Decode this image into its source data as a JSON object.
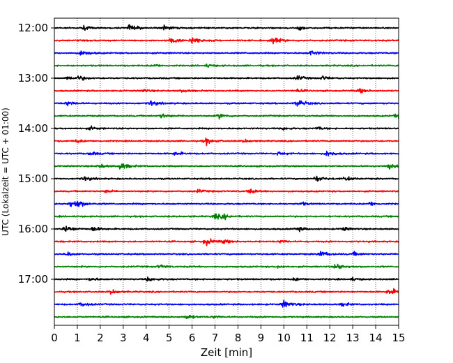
{
  "chart_data": {
    "type": "line",
    "title": "",
    "xlabel": "Zeit  [min]",
    "ylabel": "UTC (Lokalzeit = UTC + 01:00)",
    "xlim": [
      0,
      15
    ],
    "x_ticks": [
      0,
      1,
      2,
      3,
      4,
      5,
      6,
      7,
      8,
      9,
      10,
      11,
      12,
      13,
      14,
      15
    ],
    "y_tick_labels": [
      "12:00",
      "13:00",
      "14:00",
      "15:00",
      "16:00",
      "17:00"
    ],
    "trace_interval_min": 15,
    "grid": "vertical dotted at each minute",
    "legend": "none",
    "trace_colors": [
      "#000000",
      "#ff0000",
      "#0000ff",
      "#008000"
    ],
    "series": [
      {
        "start": "12:00",
        "color": "#000000",
        "events": [
          [
            1.3,
            0.5
          ],
          [
            3.3,
            0.8
          ],
          [
            4.8,
            0.6
          ],
          [
            10.7,
            0.5
          ]
        ]
      },
      {
        "start": "12:15",
        "color": "#ff0000",
        "events": [
          [
            5.1,
            0.8
          ],
          [
            6.0,
            0.9
          ],
          [
            9.5,
            0.9
          ]
        ]
      },
      {
        "start": "12:30",
        "color": "#0000ff",
        "events": [
          [
            1.2,
            0.7
          ],
          [
            11.2,
            0.7
          ]
        ]
      },
      {
        "start": "12:45",
        "color": "#008000",
        "events": [
          [
            4.4,
            0.3
          ],
          [
            6.7,
            0.4
          ]
        ]
      },
      {
        "start": "13:00",
        "color": "#000000",
        "events": [
          [
            0.6,
            0.5
          ],
          [
            1.1,
            0.6
          ],
          [
            10.6,
            0.6
          ],
          [
            11.7,
            0.5
          ]
        ]
      },
      {
        "start": "13:15",
        "color": "#ff0000",
        "events": [
          [
            3.9,
            0.4
          ],
          [
            5.6,
            0.4
          ],
          [
            10.6,
            0.4
          ],
          [
            13.3,
            0.6
          ]
        ]
      },
      {
        "start": "13:30",
        "color": "#0000ff",
        "events": [
          [
            0.6,
            0.6
          ],
          [
            4.2,
            0.7
          ],
          [
            10.6,
            0.9
          ]
        ]
      },
      {
        "start": "13:45",
        "color": "#008000",
        "events": [
          [
            4.7,
            0.6
          ],
          [
            7.2,
            0.6
          ],
          [
            14.9,
            0.6
          ]
        ]
      },
      {
        "start": "14:00",
        "color": "#000000",
        "events": [
          [
            1.6,
            0.4
          ],
          [
            10.0,
            0.4
          ],
          [
            11.5,
            0.4
          ]
        ]
      },
      {
        "start": "14:15",
        "color": "#ff0000",
        "events": [
          [
            1.0,
            0.4
          ],
          [
            6.6,
            0.8
          ],
          [
            8.3,
            0.4
          ]
        ]
      },
      {
        "start": "14:30",
        "color": "#0000ff",
        "events": [
          [
            1.6,
            0.5
          ],
          [
            5.3,
            0.5
          ],
          [
            9.8,
            0.5
          ],
          [
            11.9,
            0.7
          ]
        ]
      },
      {
        "start": "14:45",
        "color": "#008000",
        "events": [
          [
            2.0,
            0.5
          ],
          [
            2.9,
            0.9
          ],
          [
            14.6,
            0.6
          ]
        ]
      },
      {
        "start": "15:00",
        "color": "#000000",
        "events": [
          [
            1.3,
            0.6
          ],
          [
            11.4,
            0.8
          ],
          [
            12.7,
            0.6
          ]
        ]
      },
      {
        "start": "15:15",
        "color": "#ff0000",
        "events": [
          [
            2.3,
            0.4
          ],
          [
            6.3,
            0.4
          ],
          [
            8.5,
            0.6
          ]
        ]
      },
      {
        "start": "15:30",
        "color": "#0000ff",
        "events": [
          [
            0.7,
            0.7
          ],
          [
            1.0,
            0.9
          ],
          [
            10.8,
            0.4
          ],
          [
            13.8,
            0.5
          ]
        ]
      },
      {
        "start": "15:45",
        "color": "#008000",
        "events": [
          [
            7.0,
            0.7
          ],
          [
            7.4,
            0.5
          ]
        ]
      },
      {
        "start": "16:00",
        "color": "#000000",
        "events": [
          [
            0.5,
            0.9
          ],
          [
            1.7,
            0.6
          ],
          [
            10.6,
            0.6
          ],
          [
            12.6,
            0.5
          ]
        ]
      },
      {
        "start": "16:15",
        "color": "#ff0000",
        "events": [
          [
            6.6,
            0.9
          ],
          [
            7.4,
            0.5
          ],
          [
            9.9,
            0.4
          ]
        ]
      },
      {
        "start": "16:30",
        "color": "#0000ff",
        "events": [
          [
            0.6,
            0.5
          ],
          [
            11.6,
            0.8
          ],
          [
            13.1,
            0.5
          ]
        ]
      },
      {
        "start": "16:45",
        "color": "#008000",
        "events": [
          [
            4.6,
            0.5
          ],
          [
            9.8,
            0.3
          ],
          [
            12.3,
            0.8
          ]
        ]
      },
      {
        "start": "17:00",
        "color": "#000000",
        "events": [
          [
            1.6,
            0.5
          ],
          [
            4.1,
            0.6
          ],
          [
            10.5,
            0.4
          ],
          [
            13.0,
            0.4
          ]
        ]
      },
      {
        "start": "17:15",
        "color": "#ff0000",
        "events": [
          [
            2.5,
            0.6
          ],
          [
            14.6,
            0.9
          ]
        ]
      },
      {
        "start": "17:30",
        "color": "#0000ff",
        "events": [
          [
            1.2,
            0.6
          ],
          [
            10.0,
            0.9
          ],
          [
            12.6,
            0.5
          ]
        ]
      },
      {
        "start": "17:45",
        "color": "#008000",
        "events": [
          [
            5.8,
            0.6
          ],
          [
            7.0,
            0.3
          ]
        ]
      }
    ]
  }
}
